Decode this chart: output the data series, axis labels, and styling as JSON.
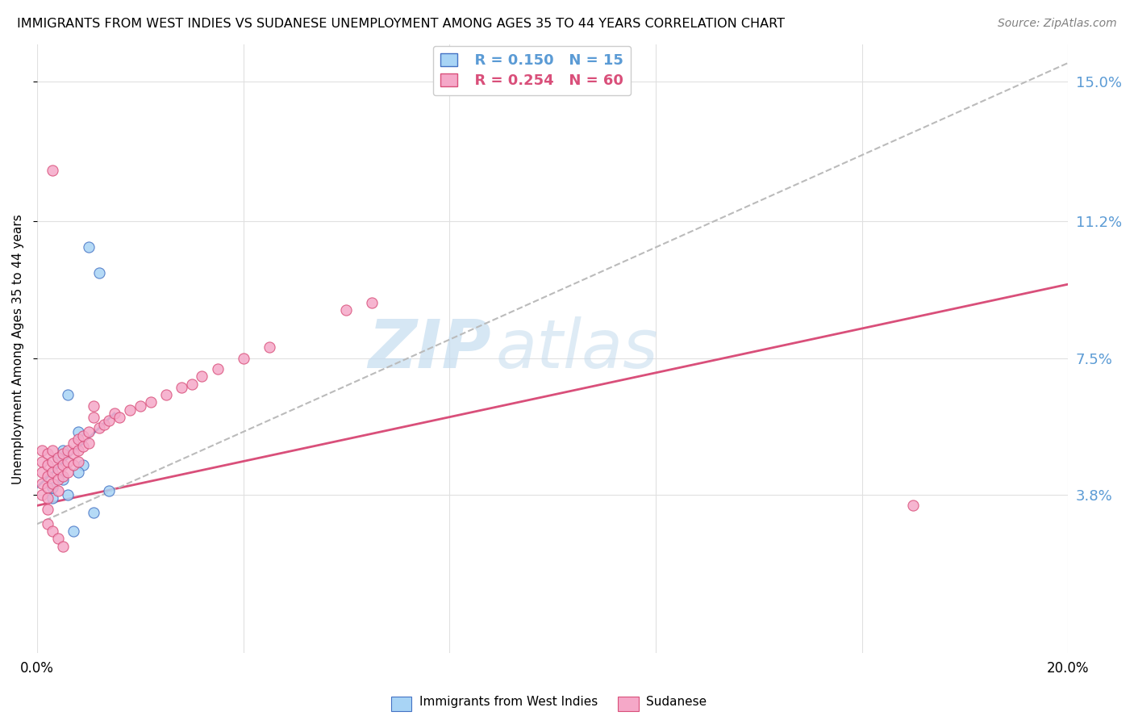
{
  "title": "IMMIGRANTS FROM WEST INDIES VS SUDANESE UNEMPLOYMENT AMONG AGES 35 TO 44 YEARS CORRELATION CHART",
  "source": "Source: ZipAtlas.com",
  "ylabel_left": "Unemployment Among Ages 35 to 44 years",
  "legend_label1": "Immigrants from West Indies",
  "legend_label2": "Sudanese",
  "legend_r1": "R = 0.150",
  "legend_n1": "N = 15",
  "legend_r2": "R = 0.254",
  "legend_n2": "N = 60",
  "color_blue": "#A8D4F5",
  "color_pink": "#F5A8C8",
  "color_blue_line": "#5B9BD5",
  "color_pink_line": "#E05080",
  "color_blue_dark": "#4472C4",
  "color_pink_dark": "#D94F7A",
  "watermark_zip": "ZIP",
  "watermark_atlas": "atlas",
  "blue_x": [
    0.006,
    0.01,
    0.012,
    0.008,
    0.005,
    0.004,
    0.009,
    0.003,
    0.006,
    0.014,
    0.011,
    0.007,
    0.003,
    0.005,
    0.008
  ],
  "blue_y": [
    0.065,
    0.105,
    0.098,
    0.055,
    0.05,
    0.048,
    0.046,
    0.037,
    0.038,
    0.039,
    0.033,
    0.028,
    0.04,
    0.042,
    0.044
  ],
  "pink_x": [
    0.001,
    0.001,
    0.001,
    0.001,
    0.001,
    0.002,
    0.002,
    0.002,
    0.002,
    0.002,
    0.002,
    0.003,
    0.003,
    0.003,
    0.003,
    0.003,
    0.004,
    0.004,
    0.004,
    0.004,
    0.005,
    0.005,
    0.005,
    0.006,
    0.006,
    0.006,
    0.007,
    0.007,
    0.007,
    0.008,
    0.008,
    0.008,
    0.009,
    0.009,
    0.01,
    0.01,
    0.011,
    0.011,
    0.012,
    0.013,
    0.014,
    0.015,
    0.016,
    0.018,
    0.02,
    0.022,
    0.025,
    0.028,
    0.03,
    0.032,
    0.035,
    0.04,
    0.045,
    0.06,
    0.065,
    0.17,
    0.002,
    0.003,
    0.004,
    0.005
  ],
  "pink_y": [
    0.05,
    0.047,
    0.044,
    0.041,
    0.038,
    0.049,
    0.046,
    0.043,
    0.04,
    0.037,
    0.034,
    0.05,
    0.047,
    0.044,
    0.041,
    0.126,
    0.048,
    0.045,
    0.042,
    0.039,
    0.049,
    0.046,
    0.043,
    0.05,
    0.047,
    0.044,
    0.052,
    0.049,
    0.046,
    0.053,
    0.05,
    0.047,
    0.054,
    0.051,
    0.055,
    0.052,
    0.062,
    0.059,
    0.056,
    0.057,
    0.058,
    0.06,
    0.059,
    0.061,
    0.062,
    0.063,
    0.065,
    0.067,
    0.068,
    0.07,
    0.072,
    0.075,
    0.078,
    0.088,
    0.09,
    0.035,
    0.03,
    0.028,
    0.026,
    0.024
  ],
  "xlim": [
    0.0,
    0.2
  ],
  "ylim": [
    -0.005,
    0.16
  ],
  "grid_color": "#E0E0E0",
  "ytick_vals": [
    0.038,
    0.075,
    0.112,
    0.15
  ],
  "ytick_labels": [
    "3.8%",
    "7.5%",
    "11.2%",
    "15.0%"
  ],
  "xtick_vals": [
    0.0,
    0.2
  ],
  "xtick_labels": [
    "0.0%",
    "20.0%"
  ],
  "blue_trend_x": [
    0.0,
    0.015
  ],
  "pink_trend_x_start": 0.0,
  "pink_trend_x_end": 0.2,
  "gray_trend_x_start": 0.0,
  "gray_trend_x_end": 0.2
}
